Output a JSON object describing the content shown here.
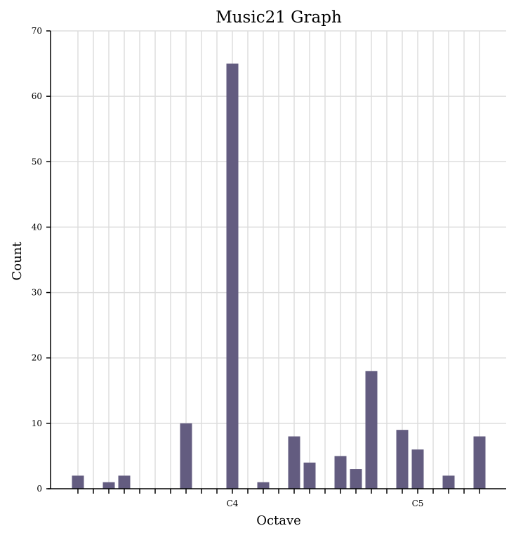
{
  "chart_data": {
    "type": "bar",
    "title": "Music21 Graph",
    "xlabel": "Octave",
    "ylabel": "Count",
    "ylim": [
      0,
      70
    ],
    "y_ticks": [
      0,
      10,
      20,
      30,
      40,
      50,
      60,
      70
    ],
    "x_tick_labels": [
      {
        "index": 10,
        "label": "C4"
      },
      {
        "index": 22,
        "label": "C5"
      }
    ],
    "bars": [
      {
        "index": 0,
        "value": 2
      },
      {
        "index": 2,
        "value": 1
      },
      {
        "index": 3,
        "value": 2
      },
      {
        "index": 7,
        "value": 10
      },
      {
        "index": 10,
        "value": 65
      },
      {
        "index": 12,
        "value": 1
      },
      {
        "index": 14,
        "value": 8
      },
      {
        "index": 15,
        "value": 4
      },
      {
        "index": 17,
        "value": 5
      },
      {
        "index": 18,
        "value": 3
      },
      {
        "index": 19,
        "value": 18
      },
      {
        "index": 21,
        "value": 9
      },
      {
        "index": 22,
        "value": 6
      },
      {
        "index": 24,
        "value": 2
      },
      {
        "index": 26,
        "value": 8
      }
    ],
    "grid": true,
    "bar_color": "#635c80",
    "grid_color": "#dddddd",
    "axis_color": "#000000"
  }
}
